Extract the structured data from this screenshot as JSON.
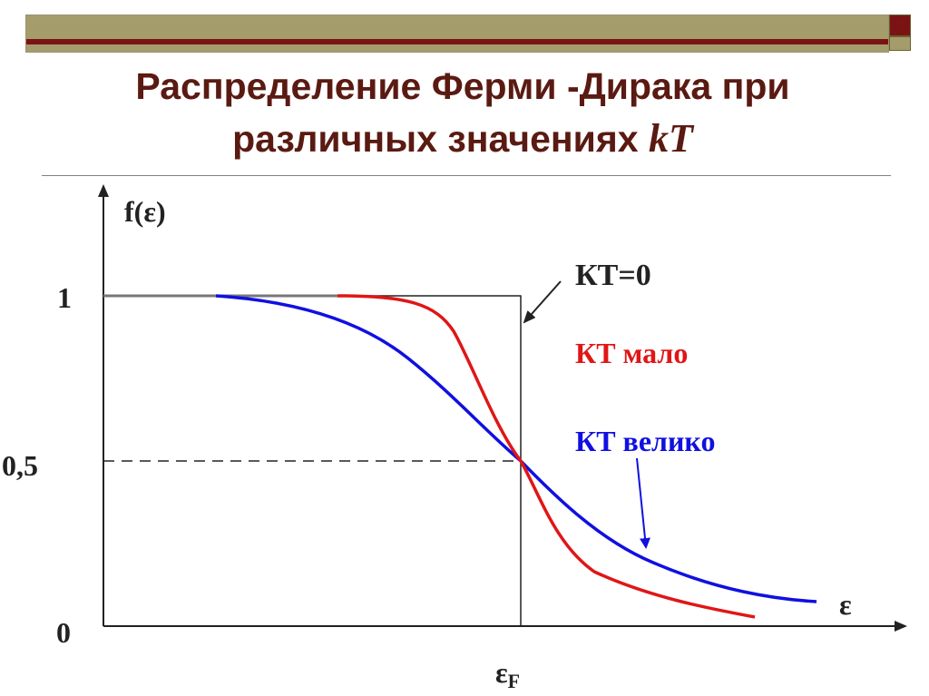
{
  "title": {
    "line1": "Распределение Ферми -Дирака при",
    "line2": "различных значениях ",
    "kt": "kT"
  },
  "diagram": {
    "y_axis_label": "f(ε)",
    "x_axis_label": "ε",
    "fermi_label": "ε",
    "fermi_sub": "F",
    "ticks": {
      "one": "1",
      "half": "0,5",
      "zero": "0"
    },
    "legend": {
      "kt0": "КТ=0",
      "kt_small": "КТ мало",
      "kt_large": "КТ велико"
    }
  },
  "colors": {
    "title": "#5a1a12",
    "kt_small": "#e01616",
    "kt_large": "#1010e0",
    "bar": "#a59c6c",
    "bar_stripe": "#7a1414"
  }
}
